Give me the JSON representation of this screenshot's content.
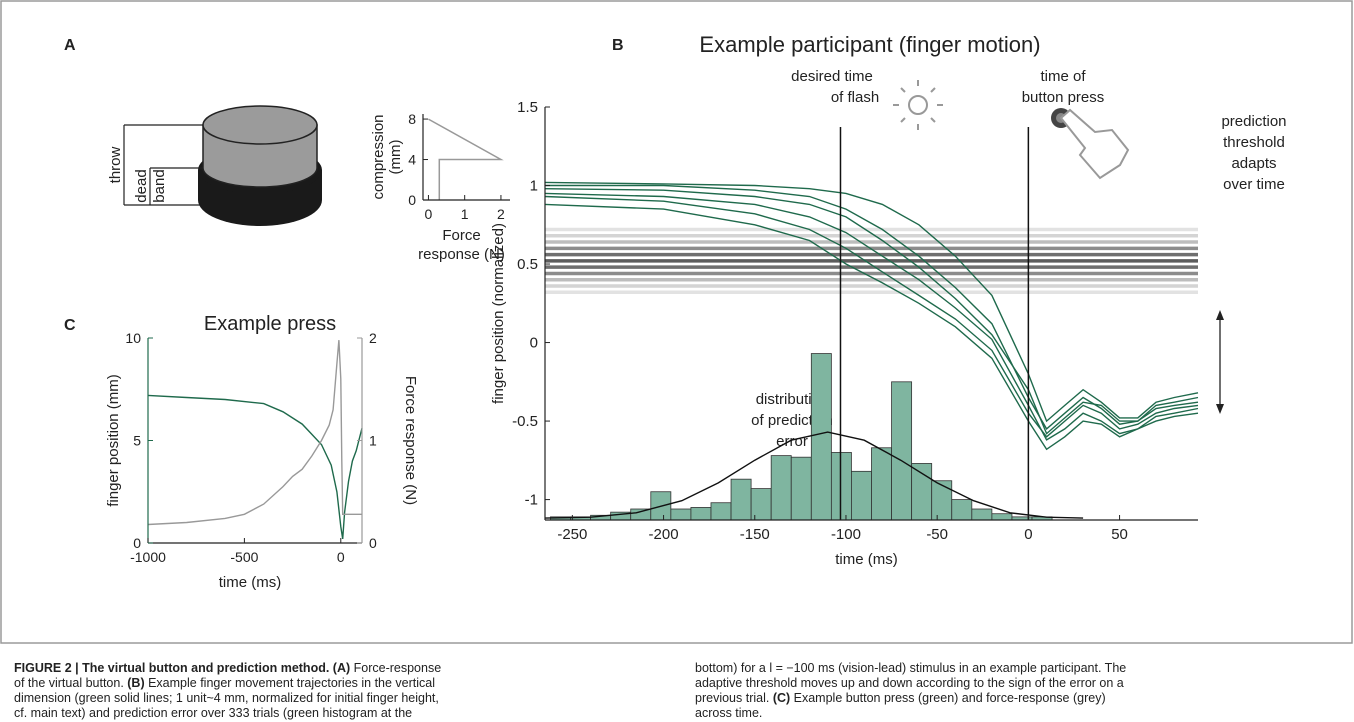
{
  "panel_labels": [
    "A",
    "B",
    "C"
  ],
  "button": {
    "throw": "throw",
    "dead_band": [
      "dead",
      "band"
    ]
  },
  "annotations": {
    "flash": [
      "desired time",
      "of flash"
    ],
    "press": [
      "time of",
      "button press"
    ],
    "threshold": [
      "prediction",
      "threshold",
      "adapts",
      "over time"
    ],
    "distribution": [
      "distribution",
      "of prediction",
      "error"
    ]
  },
  "chart_data": [
    {
      "type": "line",
      "ylabel": [
        "compression",
        "(mm)"
      ],
      "xlabel": [
        "Force",
        "response (N)"
      ],
      "xlim": [
        -0.15,
        2.25
      ],
      "ylim": [
        0,
        8.5
      ],
      "xticks": [
        0,
        1,
        2
      ],
      "yticks": [
        0,
        4,
        8
      ],
      "series": [
        {
          "color": "#999999",
          "x": [
            0.3,
            0.3,
            2,
            0
          ],
          "values": [
            0,
            4,
            4,
            8
          ]
        }
      ]
    },
    {
      "type": "line",
      "title": "Example participant (finger motion)",
      "ylabel": "finger position (normalized)",
      "xlabel": "time (ms)",
      "xlim": [
        -265,
        93
      ],
      "ylim": [
        -1.13,
        1.5
      ],
      "xticks": [
        -250,
        -200,
        -150,
        -100,
        -50,
        0,
        50
      ],
      "yticks": [
        -1,
        -0.5,
        0,
        0.5,
        1,
        1.5
      ],
      "hlines": {
        "values": [
          0.72,
          0.68,
          0.64,
          0.6,
          0.56,
          0.52,
          0.48,
          0.44,
          0.4,
          0.36,
          0.32
        ],
        "colors": [
          "#e2e2e2",
          "#d4d4d4",
          "#bdbdbd",
          "#8c8c8c",
          "#6e6e6e",
          "#5c5c5c",
          "#6e6e6e",
          "#8c8c8c",
          "#bdbdbd",
          "#d4d4d4",
          "#e2e2e2"
        ]
      },
      "vlines": [
        -103,
        0
      ],
      "histogram": {
        "color": "#7fb5a0",
        "bins": [
          -262,
          -251,
          -240,
          -229,
          -218,
          -207,
          -196,
          -185,
          -174,
          -163,
          -152,
          -141,
          -130,
          -119,
          -108,
          -97,
          -86,
          -75,
          -64,
          -53,
          -42,
          -31,
          -20,
          -9,
          2,
          13
        ],
        "values": [
          -1.11,
          -1.11,
          -1.1,
          -1.08,
          -1.06,
          -0.95,
          -1.06,
          -1.05,
          -1.02,
          -0.87,
          -0.93,
          -0.72,
          -0.73,
          -0.07,
          -0.7,
          -0.82,
          -0.67,
          -0.25,
          -0.77,
          -0.88,
          -1.0,
          -1.06,
          -1.09,
          -1.11,
          -1.11
        ]
      },
      "series": [
        {
          "color": "#1f6a4c",
          "x": [
            -265,
            -200,
            -150,
            -120,
            -100,
            -80,
            -60,
            -40,
            -20,
            0,
            10,
            20,
            30,
            40,
            50,
            60,
            70,
            80,
            93
          ],
          "values": [
            1.0,
            1.0,
            0.97,
            0.93,
            0.85,
            0.72,
            0.55,
            0.35,
            0.12,
            -0.35,
            -0.55,
            -0.45,
            -0.35,
            -0.42,
            -0.52,
            -0.5,
            -0.4,
            -0.38,
            -0.35
          ]
        },
        {
          "color": "#1f6a4c",
          "x": [
            -265,
            -200,
            -150,
            -120,
            -100,
            -80,
            -60,
            -40,
            -20,
            0,
            10,
            20,
            30,
            40,
            50,
            60,
            70,
            80,
            93
          ],
          "values": [
            0.93,
            0.9,
            0.82,
            0.72,
            0.6,
            0.45,
            0.3,
            0.15,
            -0.05,
            -0.45,
            -0.6,
            -0.5,
            -0.4,
            -0.45,
            -0.55,
            -0.52,
            -0.45,
            -0.42,
            -0.4
          ]
        },
        {
          "color": "#1f6a4c",
          "x": [
            -265,
            -200,
            -150,
            -120,
            -100,
            -80,
            -60,
            -40,
            -20,
            0,
            10,
            20,
            30,
            40,
            50,
            60,
            70,
            80,
            93
          ],
          "values": [
            1.02,
            1.01,
            1.0,
            0.98,
            0.95,
            0.88,
            0.75,
            0.55,
            0.3,
            -0.2,
            -0.5,
            -0.4,
            -0.3,
            -0.38,
            -0.48,
            -0.48,
            -0.38,
            -0.35,
            -0.32
          ]
        },
        {
          "color": "#1f6a4c",
          "x": [
            -265,
            -200,
            -150,
            -120,
            -100,
            -80,
            -60,
            -40,
            -20,
            0,
            10,
            20,
            30,
            40,
            50,
            60,
            70,
            80,
            93
          ],
          "values": [
            0.95,
            0.93,
            0.88,
            0.8,
            0.7,
            0.55,
            0.4,
            0.22,
            0.02,
            -0.4,
            -0.62,
            -0.55,
            -0.45,
            -0.5,
            -0.58,
            -0.55,
            -0.47,
            -0.45,
            -0.42
          ]
        },
        {
          "color": "#1f6a4c",
          "x": [
            -265,
            -200,
            -150,
            -120,
            -100,
            -80,
            -60,
            -40,
            -20,
            0,
            10,
            20,
            30,
            40,
            50,
            60,
            70,
            80,
            93
          ],
          "values": [
            0.88,
            0.85,
            0.75,
            0.65,
            0.5,
            0.38,
            0.25,
            0.1,
            -0.1,
            -0.5,
            -0.68,
            -0.6,
            -0.5,
            -0.52,
            -0.6,
            -0.55,
            -0.5,
            -0.47,
            -0.45
          ]
        },
        {
          "color": "#1f6a4c",
          "x": [
            -265,
            -200,
            -150,
            -120,
            -100,
            -80,
            -60,
            -40,
            -20,
            0,
            10,
            20,
            30,
            40,
            50,
            60,
            70,
            80,
            93
          ],
          "values": [
            0.98,
            0.97,
            0.93,
            0.88,
            0.8,
            0.65,
            0.48,
            0.28,
            0.05,
            -0.3,
            -0.58,
            -0.48,
            -0.38,
            -0.4,
            -0.5,
            -0.5,
            -0.42,
            -0.4,
            -0.38
          ]
        },
        {
          "color": "#111111",
          "x": [
            -265,
            -240,
            -215,
            -190,
            -170,
            -150,
            -130,
            -110,
            -90,
            -70,
            -50,
            -30,
            -10,
            10,
            30
          ],
          "values": [
            -1.118,
            -1.112,
            -1.084,
            -1.007,
            -0.894,
            -0.749,
            -0.622,
            -0.57,
            -0.622,
            -0.749,
            -0.894,
            -1.007,
            -1.084,
            -1.112,
            -1.118
          ]
        }
      ]
    },
    {
      "type": "line",
      "title": "Example press",
      "ylabel": "finger position (mm)",
      "y2label": "Force response (N)",
      "xlabel": "time (ms)",
      "xlim": [
        -1000,
        110
      ],
      "ylim": [
        0,
        10
      ],
      "y2lim": [
        0,
        2
      ],
      "xticks": [
        -1000,
        -500,
        0
      ],
      "yticks": [
        0,
        5,
        10
      ],
      "y2ticks": [
        0,
        1,
        2
      ],
      "ycolor": "#1f6a4c",
      "y2color": "#999999",
      "series": [
        {
          "color": "#1f6a4c",
          "x": [
            -1000,
            -800,
            -600,
            -400,
            -300,
            -200,
            -150,
            -100,
            -50,
            -20,
            0,
            10,
            20,
            40,
            60,
            80,
            110
          ],
          "values": [
            7.2,
            7.1,
            7.0,
            6.8,
            6.4,
            5.8,
            5.3,
            4.8,
            3.8,
            2.5,
            0.8,
            0.2,
            1.5,
            3.0,
            4.0,
            4.5,
            5.6
          ]
        },
        {
          "color": "#999999",
          "axis": "y2",
          "x": [
            -1000,
            -800,
            -600,
            -500,
            -400,
            -300,
            -250,
            -200,
            -150,
            -100,
            -60,
            -40,
            -20,
            -10,
            0,
            5,
            10,
            20,
            110
          ],
          "values": [
            0.18,
            0.2,
            0.24,
            0.28,
            0.38,
            0.55,
            0.65,
            0.72,
            0.85,
            1.0,
            1.15,
            1.3,
            1.75,
            1.98,
            1.6,
            0.8,
            0.28,
            0.28,
            0.28
          ]
        }
      ]
    }
  ],
  "caption": {
    "left": [
      [
        {
          "b": "FIGURE 2 | The virtual button and prediction method. (A)"
        },
        " Force-response"
      ],
      [
        "of the virtual button. ",
        {
          "b": "(B)"
        },
        " Example finger movement trajectories in the vertical"
      ],
      [
        "dimension (green solid lines; 1 unit~4 mm, normalized for initial finger height,"
      ],
      [
        "cf. main text) and prediction error over 333 trials (green histogram at the"
      ]
    ],
    "right": [
      [
        "bottom) for a l = −100 ms (vision-lead) stimulus in an example participant. The"
      ],
      [
        "adaptive threshold moves up and down according to the sign of the error on a"
      ],
      [
        "previous trial. ",
        {
          "b": "(C)"
        },
        " Example button press (green) and force-response (grey)"
      ],
      [
        "across time."
      ]
    ]
  }
}
